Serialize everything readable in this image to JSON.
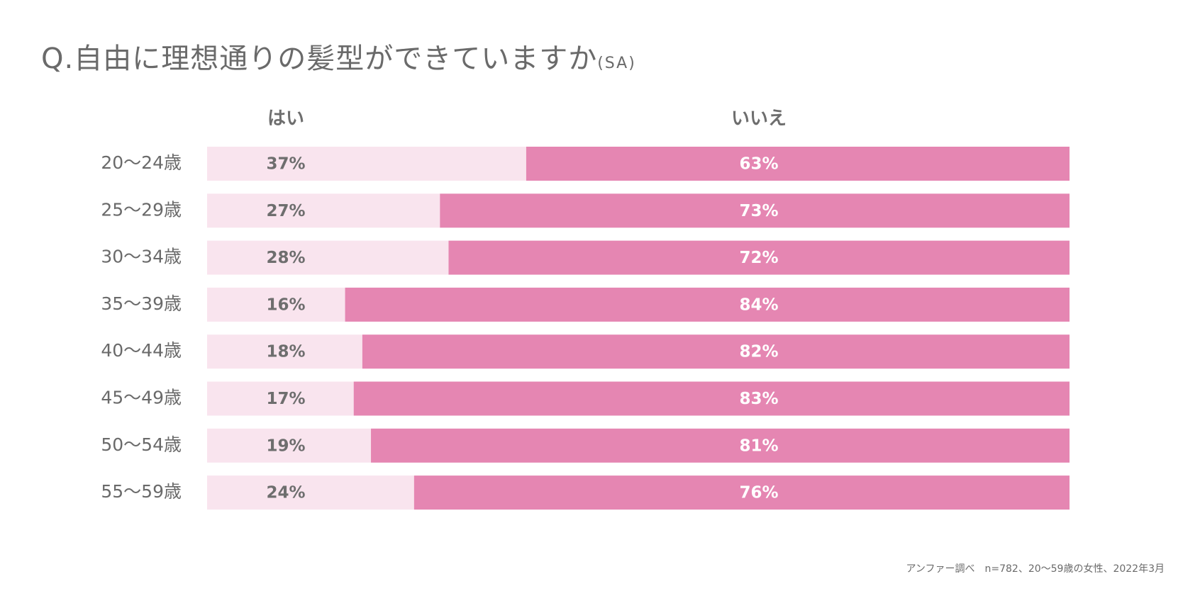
{
  "title": {
    "main": "Q.自由に理想通りの髪型ができていますか",
    "suffix": "(SA)"
  },
  "source": "アンファー調べ　n=782、20〜59歳の女性、2022年3月",
  "colors": {
    "yes": "#f9e4ee",
    "no": "#e586b2",
    "yes_text": "#6e6e6e",
    "no_text": "#ffffff",
    "category_text": "#6a6a6a"
  },
  "chart_data": {
    "type": "bar",
    "stacked": true,
    "orientation": "horizontal",
    "percent": true,
    "categories": [
      "20〜24歳",
      "25〜29歳",
      "30〜34歳",
      "35〜39歳",
      "40〜44歳",
      "45〜49歳",
      "50〜54歳",
      "55〜59歳"
    ],
    "series": [
      {
        "name": "はい",
        "values": [
          37,
          27,
          28,
          16,
          18,
          17,
          19,
          24
        ],
        "labels": [
          "37%",
          "27%",
          "28%",
          "16%",
          "18%",
          "17%",
          "19%",
          "24%"
        ]
      },
      {
        "name": "いいえ",
        "values": [
          63,
          73,
          72,
          84,
          82,
          83,
          81,
          76
        ],
        "labels": [
          "63%",
          "73%",
          "72%",
          "84%",
          "82%",
          "83%",
          "81%",
          "76%"
        ]
      }
    ],
    "xlim": [
      0,
      100
    ],
    "grid": false,
    "legend": "top"
  }
}
